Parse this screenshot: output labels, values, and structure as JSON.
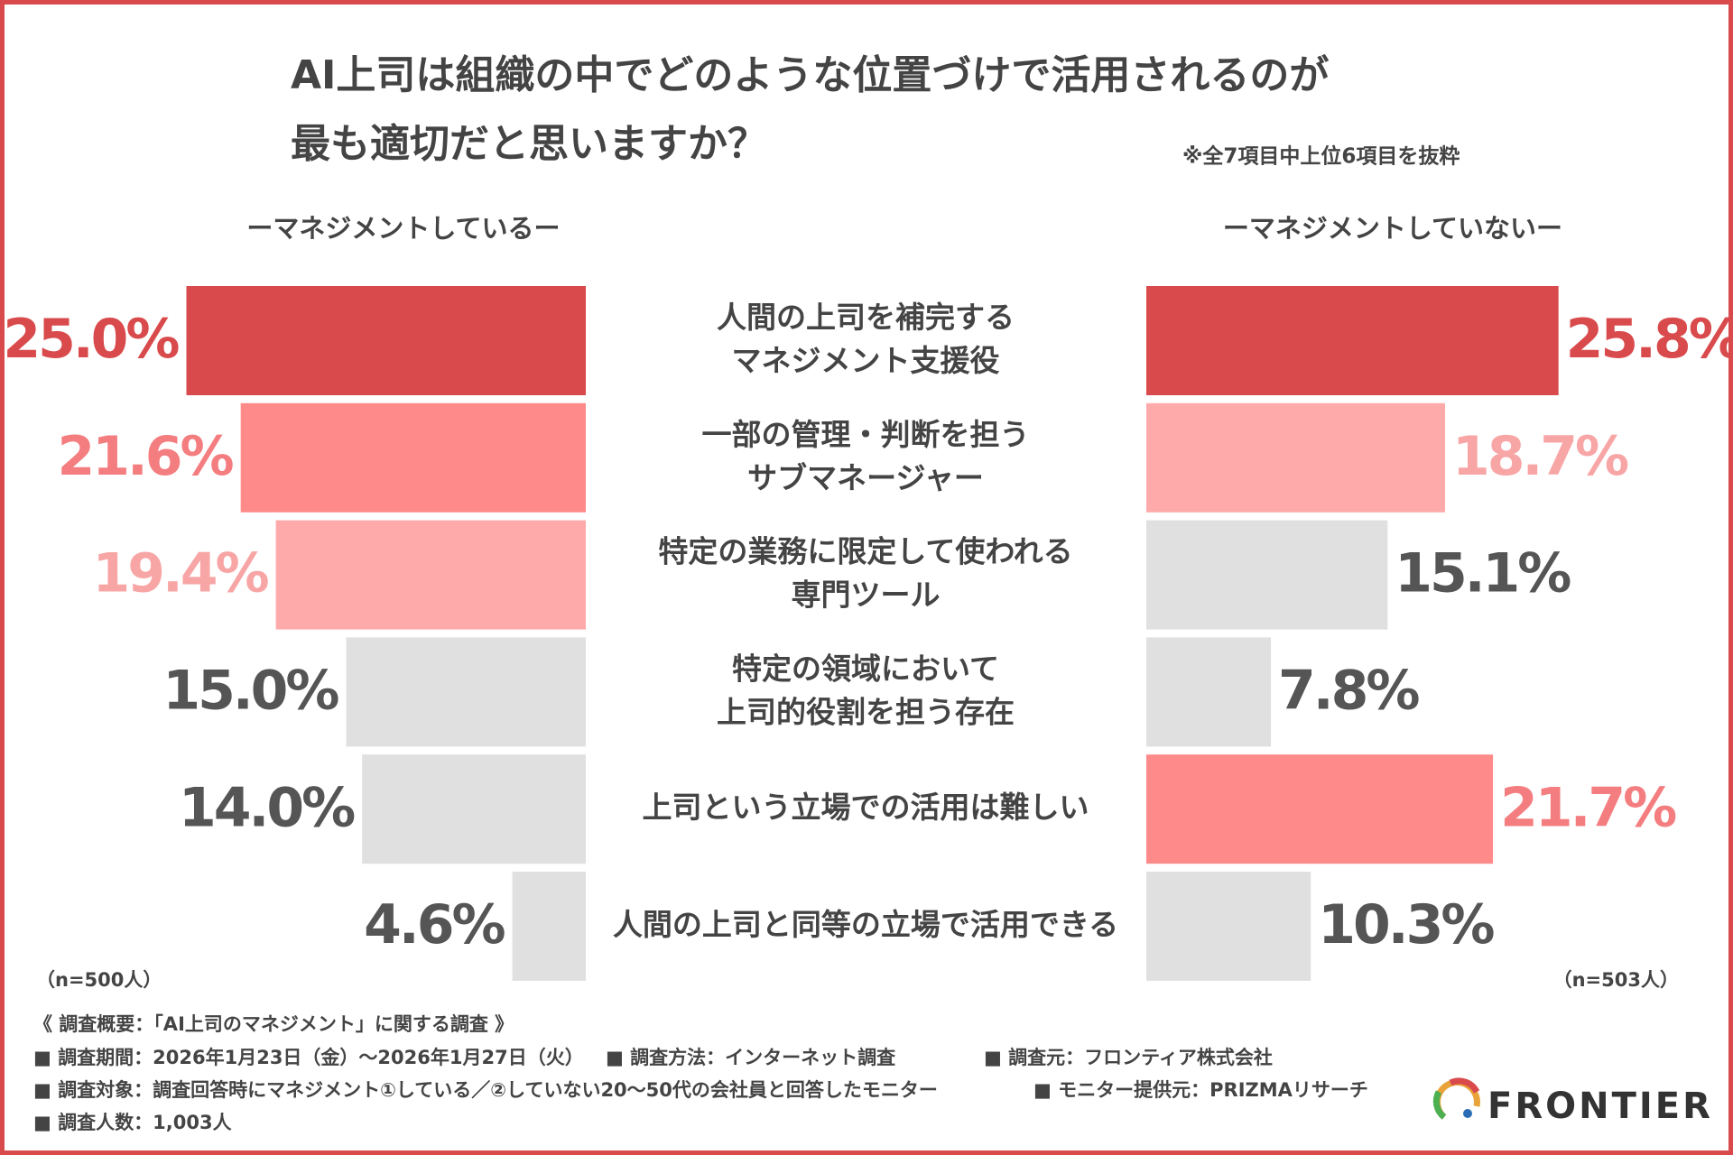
{
  "chart_data": {
    "type": "butterfly",
    "title": [
      "AI上司は組織の中でどのような位置づけで活用されるのが",
      "最も適切だと思いますか？"
    ],
    "note": "※全7項目中上位6項目を抜粋",
    "categories": [
      [
        "人間の上司を補完する",
        "マネジメント支援役"
      ],
      [
        "一部の管理・判断を担う",
        "サブマネージャー"
      ],
      [
        "特定の業務に限定して使われる",
        "専門ツール"
      ],
      [
        "特定の領域において",
        "上司的役割を担う存在"
      ],
      [
        "上司という立場での活用は難しい"
      ],
      [
        "人間の上司と同等の立場で活用できる"
      ]
    ],
    "series": [
      {
        "name": "ーマネジメントしているー",
        "n": "（n=500人）",
        "values": [
          25.0,
          21.6,
          19.4,
          15.0,
          14.0,
          4.6
        ],
        "value_labels": [
          "25.0%",
          "21.6%",
          "19.4%",
          "15.0%",
          "14.0%",
          "4.6%"
        ],
        "colors": [
          "#d94a4c",
          "#ff8a8a",
          "#ffaaaa",
          "#e0e0e0",
          "#e0e0e0",
          "#e0e0e0"
        ],
        "label_colors": [
          "#d94a4c",
          "#f47d80",
          "#f8a5a5",
          "#555555",
          "#555555",
          "#555555"
        ]
      },
      {
        "name": "ーマネジメントしていないー",
        "n": "（n=503人）",
        "values": [
          25.8,
          18.7,
          15.1,
          7.8,
          21.7,
          10.3
        ],
        "value_labels": [
          "25.8%",
          "18.7%",
          "15.1%",
          "7.8%",
          "21.7%",
          "10.3%"
        ],
        "colors": [
          "#d94a4c",
          "#ffaaaa",
          "#e0e0e0",
          "#e0e0e0",
          "#ff8a8a",
          "#e0e0e0"
        ],
        "label_colors": [
          "#d94a4c",
          "#f8a5a5",
          "#555555",
          "#555555",
          "#f47d80",
          "#555555"
        ]
      }
    ],
    "footer": {
      "heading": "《 調査概要：「AI上司のマネジメント」に関する調査 》",
      "lines": [
        [
          "■ 調査期間：2026年1月23日（金）〜2026年1月27日（火）",
          "■ 調査方法：インターネット調査",
          "■ 調査元：フロンティア株式会社"
        ],
        [
          "■ 調査対象：調査回答時にマネジメント①している／②していない20〜50代の会社員と回答したモニター",
          "■ モニター提供元：PRIZMAリサーチ"
        ],
        [
          "■ 調査人数：1,003人"
        ]
      ]
    },
    "logo": "FRONTIER"
  }
}
